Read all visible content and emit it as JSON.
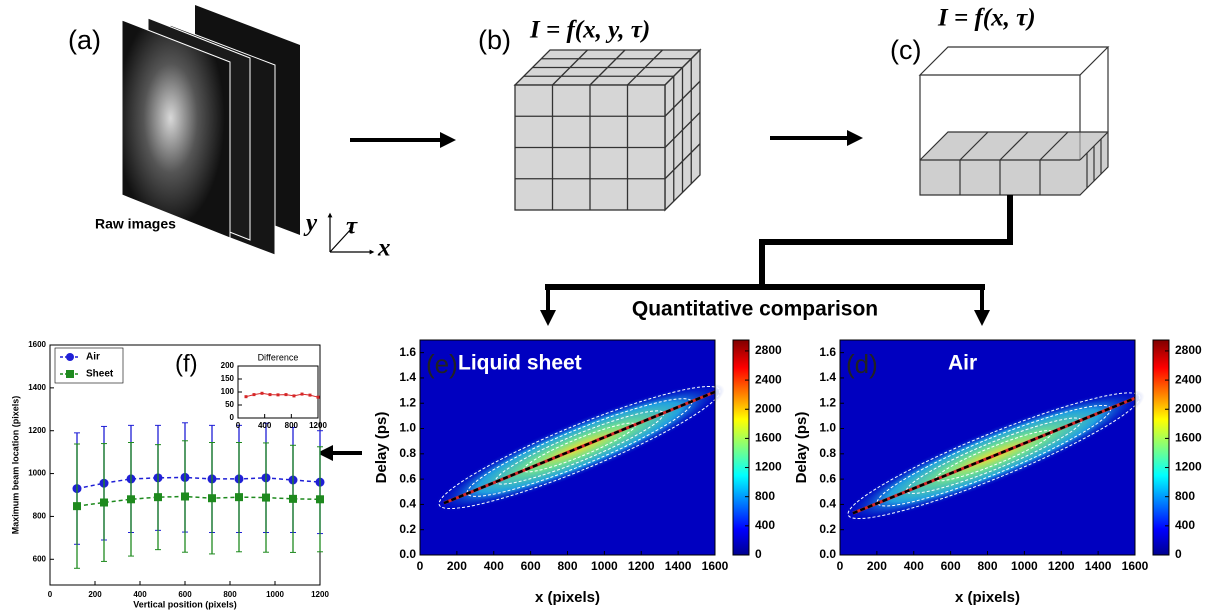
{
  "panel_a": {
    "label": "(a)",
    "caption": "Raw images",
    "axis_y": "y",
    "axis_tau": "τ",
    "axis_x": "x"
  },
  "panel_b": {
    "label": "(b)",
    "formula": "I = f(x, y, τ)"
  },
  "panel_c": {
    "label": "(c)",
    "formula": "I = f(x, τ)"
  },
  "comparison": "Quantitative comparison",
  "chart_data": [
    {
      "type": "line",
      "label": "(f)",
      "xlabel": "Vertical position (pixels)",
      "ylabel": "Maximum beam location (pixels)",
      "x": [
        120,
        240,
        360,
        480,
        600,
        720,
        840,
        960,
        1080,
        1200
      ],
      "series": [
        {
          "name": "Air",
          "color": "#1f1fd6",
          "marker": "circle",
          "values": [
            930,
            955,
            975,
            980,
            982,
            975,
            975,
            980,
            970,
            960
          ],
          "errors": [
            260,
            265,
            250,
            245,
            255,
            250,
            250,
            255,
            245,
            240
          ]
        },
        {
          "name": "Sheet",
          "color": "#1e8a1e",
          "marker": "square",
          "values": [
            848,
            865,
            880,
            890,
            893,
            885,
            890,
            888,
            882,
            880
          ],
          "errors": [
            290,
            275,
            265,
            245,
            260,
            260,
            255,
            255,
            250,
            245
          ]
        }
      ],
      "xlim": [
        0,
        1200
      ],
      "xticks": [
        0,
        200,
        400,
        600,
        800,
        1000,
        1200
      ],
      "ylim": [
        480,
        1600
      ],
      "yticks": [
        600,
        800,
        1000,
        1200,
        1400,
        1600
      ],
      "legend": "upper left"
    },
    {
      "type": "line",
      "title": "Difference",
      "x": [
        120,
        240,
        360,
        480,
        600,
        720,
        840,
        960,
        1080,
        1200
      ],
      "values": [
        82,
        90,
        95,
        90,
        89,
        90,
        85,
        92,
        88,
        80
      ],
      "color": "#d62728",
      "xlim": [
        0,
        1200
      ],
      "xticks": [
        0,
        400,
        800,
        1200
      ],
      "ylim": [
        0,
        200
      ],
      "yticks": [
        0,
        50,
        100,
        150,
        200
      ]
    },
    {
      "type": "heatmap",
      "label": "(e)",
      "title": "Liquid sheet",
      "xlabel": "x (pixels)",
      "ylabel": "Delay (ps)",
      "xlim": [
        0,
        1600
      ],
      "xticks": [
        0,
        200,
        400,
        600,
        800,
        1000,
        1200,
        1400,
        1600
      ],
      "ylim": [
        0,
        1.7
      ],
      "yticks": [
        {
          "value": 0,
          "label": "0.0"
        },
        0.2,
        0.4,
        0.6,
        0.8,
        {
          "value": 1,
          "label": "1.0"
        },
        1.2,
        1.4,
        1.6
      ],
      "fit": {
        "x": [
          130,
          1600
        ],
        "y": [
          0.41,
          1.29
        ],
        "color": "#d62728"
      },
      "colorbar": {
        "lim": [
          0,
          2950
        ],
        "ticks": [
          0,
          400,
          800,
          1200,
          1600,
          2000,
          2400,
          2800
        ]
      }
    },
    {
      "type": "heatmap",
      "label": "(d)",
      "title": "Air",
      "xlabel": "x (pixels)",
      "ylabel": "Delay (ps)",
      "xlim": [
        0,
        1600
      ],
      "xticks": [
        0,
        200,
        400,
        600,
        800,
        1000,
        1200,
        1400,
        1600
      ],
      "ylim": [
        0,
        1.7
      ],
      "yticks": [
        {
          "value": 0,
          "label": "0.0"
        },
        0.2,
        0.4,
        0.6,
        0.8,
        {
          "value": 1,
          "label": "1.0"
        },
        1.2,
        1.4,
        1.6
      ],
      "fit": {
        "x": [
          70,
          1600
        ],
        "y": [
          0.33,
          1.24
        ],
        "color": "#d62728"
      },
      "colorbar": {
        "lim": [
          0,
          2950
        ],
        "ticks": [
          0,
          400,
          800,
          1200,
          1600,
          2000,
          2400,
          2800
        ]
      }
    }
  ]
}
